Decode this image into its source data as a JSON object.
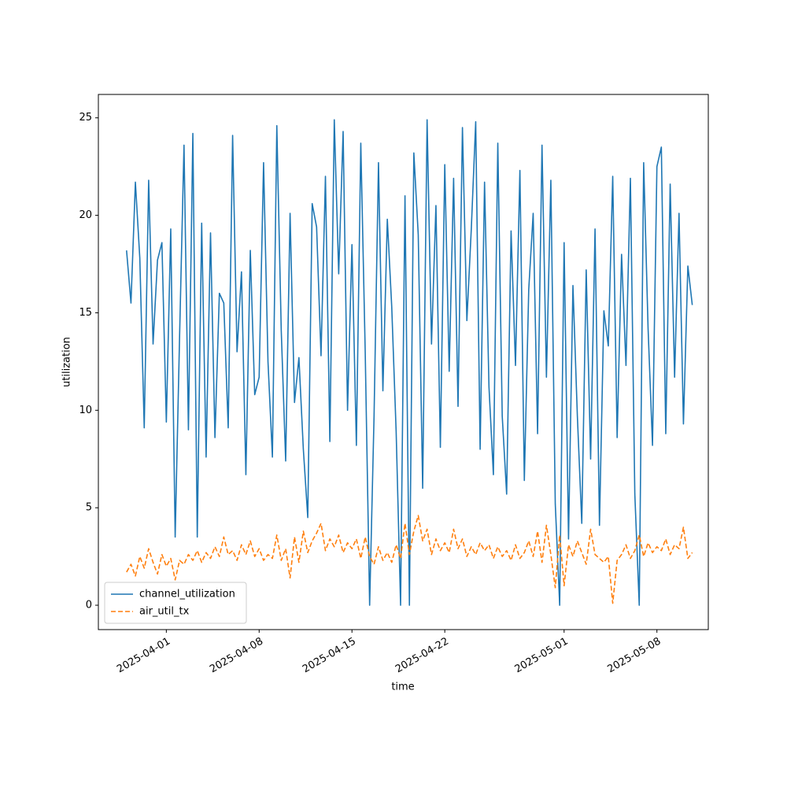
{
  "chart_data": {
    "type": "line",
    "xlabel": "time",
    "ylabel": "utilization",
    "x": [
      "2025-03-29T00:00",
      "2025-03-29T08:00",
      "2025-03-29T16:00",
      "2025-03-30T00:00",
      "2025-03-30T08:00",
      "2025-03-30T16:00",
      "2025-03-31T00:00",
      "2025-03-31T08:00",
      "2025-03-31T16:00",
      "2025-04-01T00:00",
      "2025-04-01T08:00",
      "2025-04-01T16:00",
      "2025-04-02T00:00",
      "2025-04-02T08:00",
      "2025-04-02T16:00",
      "2025-04-03T00:00",
      "2025-04-03T08:00",
      "2025-04-03T16:00",
      "2025-04-04T00:00",
      "2025-04-04T08:00",
      "2025-04-04T16:00",
      "2025-04-05T00:00",
      "2025-04-05T08:00",
      "2025-04-05T16:00",
      "2025-04-06T00:00",
      "2025-04-06T08:00",
      "2025-04-06T16:00",
      "2025-04-07T00:00",
      "2025-04-07T08:00",
      "2025-04-07T16:00",
      "2025-04-08T00:00",
      "2025-04-08T08:00",
      "2025-04-08T16:00",
      "2025-04-09T00:00",
      "2025-04-09T08:00",
      "2025-04-09T16:00",
      "2025-04-10T00:00",
      "2025-04-10T08:00",
      "2025-04-10T16:00",
      "2025-04-11T00:00",
      "2025-04-11T08:00",
      "2025-04-11T16:00",
      "2025-04-12T00:00",
      "2025-04-12T08:00",
      "2025-04-12T16:00",
      "2025-04-13T00:00",
      "2025-04-13T08:00",
      "2025-04-13T16:00",
      "2025-04-14T00:00",
      "2025-04-14T08:00",
      "2025-04-14T16:00",
      "2025-04-15T00:00",
      "2025-04-15T08:00",
      "2025-04-15T16:00",
      "2025-04-16T00:00",
      "2025-04-16T08:00",
      "2025-04-16T16:00",
      "2025-04-17T00:00",
      "2025-04-17T08:00",
      "2025-04-17T16:00",
      "2025-04-18T00:00",
      "2025-04-18T08:00",
      "2025-04-18T16:00",
      "2025-04-19T00:00",
      "2025-04-19T08:00",
      "2025-04-19T16:00",
      "2025-04-20T00:00",
      "2025-04-20T08:00",
      "2025-04-20T16:00",
      "2025-04-21T00:00",
      "2025-04-21T08:00",
      "2025-04-21T16:00",
      "2025-04-22T00:00",
      "2025-04-22T08:00",
      "2025-04-22T16:00",
      "2025-04-23T00:00",
      "2025-04-23T08:00",
      "2025-04-23T16:00",
      "2025-04-24T00:00",
      "2025-04-24T08:00",
      "2025-04-24T16:00",
      "2025-04-25T00:00",
      "2025-04-25T08:00",
      "2025-04-25T16:00",
      "2025-04-26T00:00",
      "2025-04-26T08:00",
      "2025-04-26T16:00",
      "2025-04-27T00:00",
      "2025-04-27T08:00",
      "2025-04-27T16:00",
      "2025-04-28T00:00",
      "2025-04-28T08:00",
      "2025-04-28T16:00",
      "2025-04-29T00:00",
      "2025-04-29T08:00",
      "2025-04-29T16:00",
      "2025-04-30T00:00",
      "2025-04-30T08:00",
      "2025-04-30T16:00",
      "2025-05-01T00:00",
      "2025-05-01T08:00",
      "2025-05-01T16:00",
      "2025-05-02T00:00",
      "2025-05-02T08:00",
      "2025-05-02T16:00",
      "2025-05-03T00:00",
      "2025-05-03T08:00",
      "2025-05-03T16:00",
      "2025-05-04T00:00",
      "2025-05-04T08:00",
      "2025-05-04T16:00",
      "2025-05-05T00:00",
      "2025-05-05T08:00",
      "2025-05-05T16:00",
      "2025-05-06T00:00",
      "2025-05-06T08:00",
      "2025-05-06T16:00",
      "2025-05-07T00:00",
      "2025-05-07T08:00",
      "2025-05-07T16:00",
      "2025-05-08T00:00",
      "2025-05-08T08:00",
      "2025-05-08T16:00",
      "2025-05-09T00:00",
      "2025-05-09T08:00",
      "2025-05-09T16:00",
      "2025-05-10T00:00",
      "2025-05-10T08:00",
      "2025-05-10T16:00"
    ],
    "series": [
      {
        "name": "channel_utilization",
        "color": "#1f77b4",
        "linestyle": "solid",
        "values": [
          18.2,
          15.5,
          21.7,
          17.8,
          9.1,
          21.8,
          13.4,
          17.7,
          18.6,
          9.4,
          19.3,
          3.5,
          13.8,
          23.6,
          9.0,
          24.2,
          3.5,
          19.6,
          7.6,
          19.1,
          8.6,
          16.0,
          15.5,
          9.1,
          24.1,
          13.0,
          17.1,
          6.7,
          18.2,
          10.8,
          11.7,
          22.7,
          12.5,
          7.6,
          24.6,
          14.1,
          7.4,
          20.1,
          10.4,
          12.7,
          8.0,
          4.5,
          20.6,
          19.4,
          12.8,
          22.0,
          8.4,
          24.9,
          17.0,
          24.3,
          10.0,
          18.5,
          8.2,
          23.7,
          13.0,
          0,
          9.7,
          22.7,
          11.0,
          19.8,
          15.3,
          8.9,
          0,
          21.0,
          0,
          23.2,
          19.0,
          6.0,
          24.9,
          13.4,
          20.5,
          8.1,
          22.6,
          12.0,
          21.9,
          10.2,
          24.5,
          14.6,
          19.3,
          24.8,
          8.0,
          21.7,
          11.2,
          6.7,
          23.7,
          9.7,
          5.7,
          19.2,
          12.3,
          22.3,
          6.4,
          16.2,
          20.1,
          8.8,
          23.6,
          11.7,
          21.8,
          5.2,
          0,
          18.6,
          3.4,
          16.4,
          9.7,
          4.2,
          17.2,
          7.5,
          19.3,
          4.1,
          15.1,
          13.3,
          22.0,
          8.6,
          18.0,
          12.3,
          21.9,
          5.7,
          0,
          22.7,
          14.2,
          8.2,
          22.5,
          23.5,
          8.8,
          21.6,
          11.7,
          20.1,
          9.3,
          17.4,
          15.4
        ]
      },
      {
        "name": "air_util_tx",
        "color": "#ff7f0e",
        "linestyle": "dashed",
        "values": [
          1.7,
          2.1,
          1.5,
          2.5,
          1.9,
          2.9,
          2.2,
          1.6,
          2.6,
          2.0,
          2.4,
          1.3,
          2.3,
          2.1,
          2.6,
          2.3,
          2.8,
          2.2,
          2.7,
          2.4,
          3.0,
          2.5,
          3.5,
          2.6,
          2.8,
          2.3,
          3.1,
          2.6,
          3.3,
          2.5,
          2.9,
          2.3,
          2.6,
          2.4,
          3.6,
          2.3,
          2.9,
          1.4,
          3.5,
          2.2,
          3.8,
          2.7,
          3.3,
          3.7,
          4.2,
          2.8,
          3.4,
          3.0,
          3.6,
          2.7,
          3.2,
          2.9,
          3.4,
          2.4,
          3.5,
          2.5,
          2.1,
          3.0,
          2.3,
          2.7,
          2.2,
          3.1,
          2.4,
          4.2,
          2.6,
          3.8,
          4.6,
          3.3,
          3.9,
          2.6,
          3.4,
          2.8,
          3.2,
          2.7,
          3.9,
          2.9,
          3.4,
          2.5,
          3.0,
          2.6,
          3.2,
          2.8,
          3.1,
          2.4,
          3.0,
          2.5,
          2.8,
          2.3,
          3.1,
          2.4,
          2.7,
          3.3,
          2.5,
          3.8,
          2.2,
          4.1,
          2.6,
          0.9,
          3.6,
          1.0,
          3.1,
          2.5,
          3.3,
          2.7,
          2.1,
          3.9,
          2.6,
          2.4,
          2.2,
          2.5,
          0.1,
          2.3,
          2.6,
          3.1,
          2.4,
          2.8,
          3.6,
          2.5,
          3.2,
          2.7,
          3.0,
          2.8,
          3.4,
          2.6,
          3.1,
          2.9,
          4.0,
          2.4,
          2.7
        ]
      }
    ],
    "xlim": [
      "2025-03-26T21:00",
      "2025-05-11T21:00"
    ],
    "xticks": [
      "2025-04-01",
      "2025-04-08",
      "2025-04-15",
      "2025-04-22",
      "2025-05-01",
      "2025-05-08"
    ],
    "ylim": [
      -1.25,
      26.2
    ],
    "yticks": [
      0,
      5,
      10,
      15,
      20,
      25
    ],
    "legend": "lower left"
  }
}
